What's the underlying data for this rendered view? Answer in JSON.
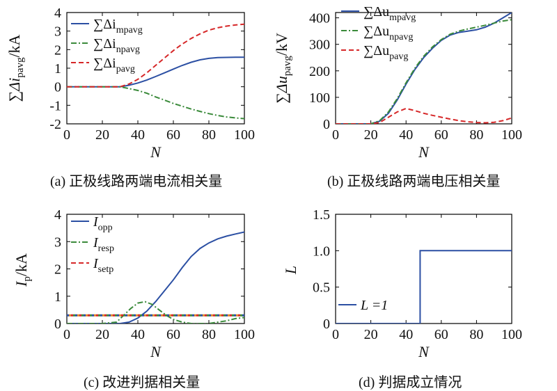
{
  "chart_data": [
    {
      "id": "a",
      "type": "line",
      "caption": "(a) 正极线路两端电流相关量",
      "xlabel": "N",
      "ylabel_main": "∑Δi",
      "ylabel_sub": "pavg",
      "ylabel_unit": "/kA",
      "xlim": [
        0,
        100
      ],
      "ylim": [
        -2,
        4
      ],
      "xticks": [
        0,
        20,
        40,
        60,
        80,
        100
      ],
      "yticks": [
        -2,
        -1,
        0,
        1,
        2,
        3,
        4
      ],
      "legend_position": "top-left",
      "series": [
        {
          "legend_main": "∑Δi",
          "legend_sub": "mpavg",
          "color": "#2b4fa3",
          "dash": "solid",
          "x": [
            0,
            10,
            20,
            30,
            35,
            40,
            45,
            50,
            55,
            60,
            65,
            70,
            75,
            80,
            85,
            90,
            95,
            100
          ],
          "y": [
            0,
            0,
            0,
            0,
            0.08,
            0.2,
            0.36,
            0.55,
            0.75,
            0.95,
            1.15,
            1.32,
            1.45,
            1.53,
            1.57,
            1.58,
            1.59,
            1.59
          ]
        },
        {
          "legend_main": "∑Δi",
          "legend_sub": "npavg",
          "color": "#3a8a3a",
          "dash": "dashdot",
          "x": [
            0,
            10,
            20,
            30,
            35,
            40,
            45,
            50,
            55,
            60,
            65,
            70,
            75,
            80,
            85,
            90,
            95,
            100
          ],
          "y": [
            0,
            0,
            0,
            0,
            -0.1,
            -0.2,
            -0.35,
            -0.55,
            -0.72,
            -0.9,
            -1.05,
            -1.2,
            -1.33,
            -1.45,
            -1.55,
            -1.63,
            -1.68,
            -1.72
          ]
        },
        {
          "legend_main": "∑Δi",
          "legend_sub": "pavg",
          "color": "#d62728",
          "dash": "dashed",
          "x": [
            0,
            10,
            20,
            30,
            35,
            40,
            45,
            50,
            55,
            60,
            65,
            70,
            75,
            80,
            85,
            90,
            95,
            100
          ],
          "y": [
            0,
            0,
            0,
            0,
            0.15,
            0.4,
            0.75,
            1.15,
            1.55,
            1.95,
            2.3,
            2.6,
            2.85,
            3.05,
            3.18,
            3.27,
            3.33,
            3.37
          ]
        }
      ]
    },
    {
      "id": "b",
      "type": "line",
      "caption": "(b) 正极线路两端电压相关量",
      "xlabel": "N",
      "ylabel_main": "∑Δu",
      "ylabel_sub": "pavg",
      "ylabel_unit": "/kV",
      "xlim": [
        0,
        100
      ],
      "ylim": [
        0,
        420
      ],
      "xticks": [
        0,
        20,
        40,
        60,
        80,
        100
      ],
      "yticks": [
        0,
        100,
        200,
        300,
        400
      ],
      "legend_position": "top-right",
      "series": [
        {
          "legend_main": "∑Δu",
          "legend_sub": "mpavg",
          "color": "#2b4fa3",
          "dash": "solid",
          "x": [
            0,
            10,
            20,
            25,
            30,
            35,
            40,
            45,
            50,
            55,
            60,
            65,
            70,
            75,
            80,
            85,
            90,
            95,
            100
          ],
          "y": [
            0,
            0,
            0,
            10,
            40,
            90,
            150,
            205,
            250,
            285,
            315,
            335,
            345,
            350,
            355,
            365,
            380,
            400,
            420
          ]
        },
        {
          "legend_main": "∑Δu",
          "legend_sub": "npavg",
          "color": "#3a8a3a",
          "dash": "dashdot",
          "x": [
            0,
            10,
            20,
            25,
            30,
            35,
            40,
            45,
            50,
            55,
            60,
            65,
            70,
            75,
            80,
            85,
            90,
            95,
            100
          ],
          "y": [
            0,
            0,
            0,
            12,
            45,
            95,
            155,
            210,
            255,
            290,
            318,
            338,
            350,
            358,
            365,
            372,
            380,
            388,
            393
          ]
        },
        {
          "legend_main": "∑Δu",
          "legend_sub": "pavg",
          "color": "#d62728",
          "dash": "dashed",
          "x": [
            0,
            10,
            20,
            25,
            30,
            35,
            40,
            45,
            50,
            55,
            60,
            65,
            70,
            75,
            80,
            85,
            90,
            95,
            100
          ],
          "y": [
            0,
            0,
            0,
            5,
            25,
            45,
            58,
            50,
            40,
            32,
            25,
            18,
            12,
            8,
            5,
            4,
            6,
            12,
            22
          ]
        }
      ]
    },
    {
      "id": "c",
      "type": "line",
      "caption": "(c) 改进判据相关量",
      "xlabel": "N",
      "ylabel_main": "I",
      "ylabel_sub": "p",
      "ylabel_unit": "/kA",
      "xlim": [
        0,
        100
      ],
      "ylim": [
        0,
        4
      ],
      "xticks": [
        0,
        20,
        40,
        60,
        80,
        100
      ],
      "yticks": [
        0,
        1,
        2,
        3,
        4
      ],
      "legend_position": "top-left",
      "series": [
        {
          "legend_main": "I",
          "legend_sub": "opp",
          "color": "#2b4fa3",
          "dash": "solid",
          "x": [
            0,
            10,
            20,
            30,
            35,
            40,
            45,
            50,
            55,
            60,
            65,
            70,
            75,
            80,
            85,
            90,
            95,
            100
          ],
          "y": [
            0,
            0,
            0,
            0,
            0.05,
            0.2,
            0.45,
            0.8,
            1.2,
            1.6,
            2.05,
            2.45,
            2.75,
            2.95,
            3.1,
            3.2,
            3.28,
            3.35
          ]
        },
        {
          "legend_main": "I",
          "legend_sub": "resp",
          "color": "#3a8a3a",
          "dash": "dashdot",
          "x": [
            0,
            10,
            20,
            28,
            32,
            36,
            40,
            44,
            48,
            52,
            56,
            60,
            65,
            70,
            75,
            80,
            85,
            90,
            95,
            100
          ],
          "y": [
            0,
            0,
            0,
            0.05,
            0.3,
            0.55,
            0.75,
            0.8,
            0.7,
            0.5,
            0.3,
            0.15,
            0.05,
            0,
            0,
            0,
            0.05,
            0.1,
            0.18,
            0.22
          ]
        },
        {
          "legend_main": "I",
          "legend_sub": "setp",
          "color": "#d62728",
          "dash": "dashed",
          "x": [
            0,
            100
          ],
          "y": [
            0.3,
            0.3
          ]
        }
      ]
    },
    {
      "id": "d",
      "type": "line",
      "caption": "(d) 判据成立情况",
      "xlabel": "N",
      "ylabel_main": "L",
      "ylabel_sub": "",
      "ylabel_unit": "",
      "xlim": [
        0,
        100
      ],
      "ylim": [
        0,
        1.5
      ],
      "xticks": [
        0,
        20,
        40,
        60,
        80,
        100
      ],
      "yticks": [
        "0",
        "0.5",
        "1.0",
        "1.5"
      ],
      "legend_position": "bottom-left",
      "series": [
        {
          "legend_main": "L =1",
          "legend_sub": "",
          "color": "#2b4fa3",
          "dash": "solid",
          "x": [
            0,
            48,
            48,
            100
          ],
          "y": [
            0,
            0,
            1,
            1
          ]
        }
      ]
    }
  ]
}
